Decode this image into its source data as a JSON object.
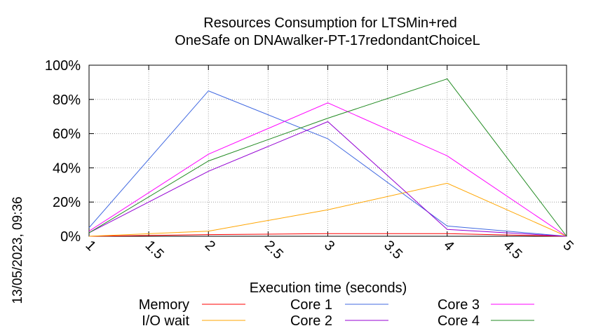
{
  "chart_data": {
    "type": "line",
    "title": [
      "Resources Consumption for LTSMin+red",
      "OneSafe on DNAwalker-PT-17redondantChoiceL"
    ],
    "xlabel": "Execution time (seconds)",
    "ylabel": "",
    "side_label": "13/05/2023, 09:36",
    "xlim": [
      1,
      5
    ],
    "ylim": [
      0,
      100
    ],
    "x_ticks": [
      "1",
      "1.5",
      "2",
      "2.5",
      "3",
      "3.5",
      "4",
      "4.5",
      "5"
    ],
    "x_tick_values": [
      1,
      1.5,
      2,
      2.5,
      3,
      3.5,
      4,
      4.5,
      5
    ],
    "y_ticks": [
      "0%",
      "20%",
      "40%",
      "60%",
      "80%",
      "100%"
    ],
    "y_tick_values": [
      0,
      20,
      40,
      60,
      80,
      100
    ],
    "grid": true,
    "legend_position": "bottom",
    "series": [
      {
        "name": "Memory",
        "color": "#ff0000",
        "x": [
          1,
          2,
          3,
          4,
          5
        ],
        "values": [
          0,
          1,
          1.5,
          1.5,
          0
        ]
      },
      {
        "name": "Core 1",
        "color": "#4169e1",
        "x": [
          1,
          2,
          3,
          4,
          5
        ],
        "values": [
          5,
          85,
          57,
          6,
          0
        ]
      },
      {
        "name": "Core 3",
        "color": "#ff00ff",
        "x": [
          1,
          2,
          3,
          4,
          5
        ],
        "values": [
          3,
          48,
          78,
          47,
          0
        ]
      },
      {
        "name": "I/O wait",
        "color": "#ffa500",
        "x": [
          1,
          2,
          3,
          4,
          5
        ],
        "values": [
          0,
          3,
          15.5,
          31,
          0
        ]
      },
      {
        "name": "Core 2",
        "color": "#9400d3",
        "x": [
          1,
          2,
          3,
          4,
          5
        ],
        "values": [
          2,
          38,
          67,
          4,
          0
        ]
      },
      {
        "name": "Core 4",
        "color": "#228b22",
        "x": [
          1,
          2,
          3,
          4,
          5
        ],
        "values": [
          2,
          44,
          69,
          92,
          0
        ]
      }
    ]
  }
}
